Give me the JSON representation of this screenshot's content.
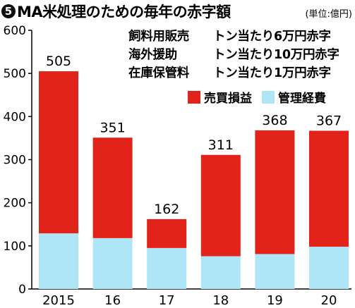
{
  "header": {
    "badge": "5",
    "title": "MA米処理のための毎年の赤字額",
    "unit": "(単位:億円)"
  },
  "notes": [
    {
      "name": "飼料用販売",
      "value": "トン当たり6万円赤字"
    },
    {
      "name": "海外援助",
      "value": "トン当たり10万円赤字"
    },
    {
      "name": "在庫保管料",
      "value": "トン当たり1万円赤字"
    }
  ],
  "legend": [
    {
      "label": "売買損益",
      "color": "#e2231a"
    },
    {
      "label": "管理経費",
      "color": "#aee6f8"
    }
  ],
  "chart_data": {
    "type": "bar",
    "stacked": true,
    "categories": [
      "2015",
      "16",
      "17",
      "18",
      "19",
      "20"
    ],
    "series": [
      {
        "name": "管理経費",
        "color": "#aee6f8",
        "values": [
          129,
          118,
          95,
          76,
          81,
          98
        ]
      },
      {
        "name": "売買損益",
        "color": "#e2231a",
        "values": [
          376,
          233,
          67,
          235,
          287,
          269
        ]
      }
    ],
    "totals": [
      505,
      351,
      162,
      311,
      368,
      367
    ],
    "ylim": [
      0,
      600
    ],
    "yticks": [
      0,
      100,
      200,
      300,
      400,
      500,
      600
    ],
    "grid": false,
    "legend_position": "top-right"
  }
}
